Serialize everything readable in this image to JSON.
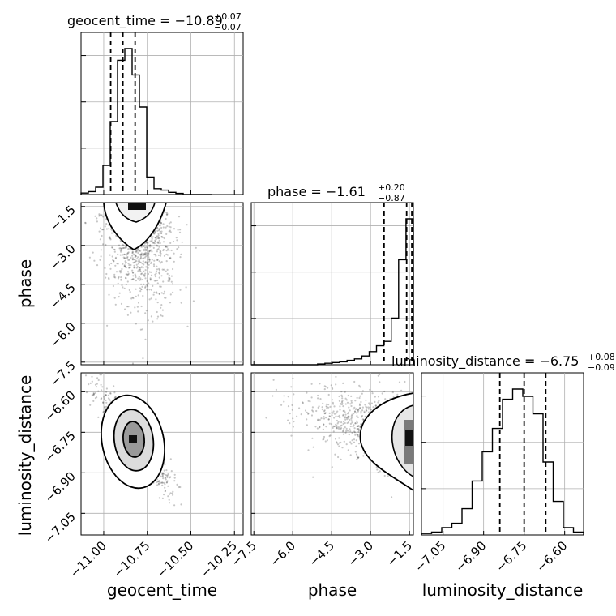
{
  "chart_data": {
    "type": "corner",
    "parameters": [
      {
        "name": "geocent_time",
        "median": -10.89,
        "plus": "+0.07",
        "minus": "−0.07",
        "title_main": "geocent_time = −10.89",
        "range": [
          -11.13,
          -10.2
        ],
        "ticks": [
          -11.0,
          -10.75,
          -10.5,
          -10.25
        ],
        "tick_labels": [
          "−11.00",
          "−10.75",
          "−10.50",
          "−10.25"
        ],
        "quantiles": [
          -10.96,
          -10.89,
          -10.82
        ]
      },
      {
        "name": "phase",
        "median": -1.61,
        "plus": "+0.20",
        "minus": "−0.87",
        "title_main": "phase = −1.61",
        "range": [
          -7.6,
          -1.35
        ],
        "ticks": [
          -7.5,
          -6.0,
          -4.5,
          -3.0,
          -1.5
        ],
        "tick_labels": [
          "−7.5",
          "−6.0",
          "−4.5",
          "−3.0",
          "−1.5"
        ],
        "quantiles": [
          -2.48,
          -1.61,
          -1.41
        ]
      },
      {
        "name": "luminosity_distance",
        "median": -6.75,
        "plus": "+0.08",
        "minus": "−0.09",
        "title_main": "luminosity_distance = −6.75",
        "range": [
          -7.13,
          -6.53
        ],
        "ticks": [
          -7.05,
          -6.9,
          -6.75,
          -6.6
        ],
        "tick_labels": [
          "−7.05",
          "−6.90",
          "−6.75",
          "−6.60"
        ],
        "quantiles": [
          -6.84,
          -6.75,
          -6.67
        ]
      }
    ],
    "hist_geocent_time": [
      0.01,
      0.02,
      0.05,
      0.2,
      0.5,
      0.92,
      1.0,
      0.82,
      0.6,
      0.12,
      0.04,
      0.03,
      0.015,
      0.008,
      0.0,
      0.0,
      0.0,
      0.0
    ],
    "hist_phase": [
      0.0,
      0.0,
      0.0,
      0.0,
      0.0,
      0.0,
      0.0,
      0.0,
      0.0,
      0.005,
      0.01,
      0.015,
      0.02,
      0.03,
      0.04,
      0.06,
      0.09,
      0.13,
      0.16,
      0.32,
      0.72,
      1.0
    ],
    "hist_luminosity_distance": [
      0.01,
      0.02,
      0.05,
      0.08,
      0.18,
      0.37,
      0.57,
      0.73,
      0.93,
      1.0,
      0.95,
      0.83,
      0.5,
      0.23,
      0.05,
      0.02
    ],
    "xlabels": [
      "geocent_time",
      "phase",
      "luminosity_distance"
    ],
    "ylabels": [
      "phase",
      "luminosity_distance"
    ],
    "colors": {
      "contour": "#000000",
      "grid": "#b0b0b0",
      "scatter": "#000000"
    }
  }
}
